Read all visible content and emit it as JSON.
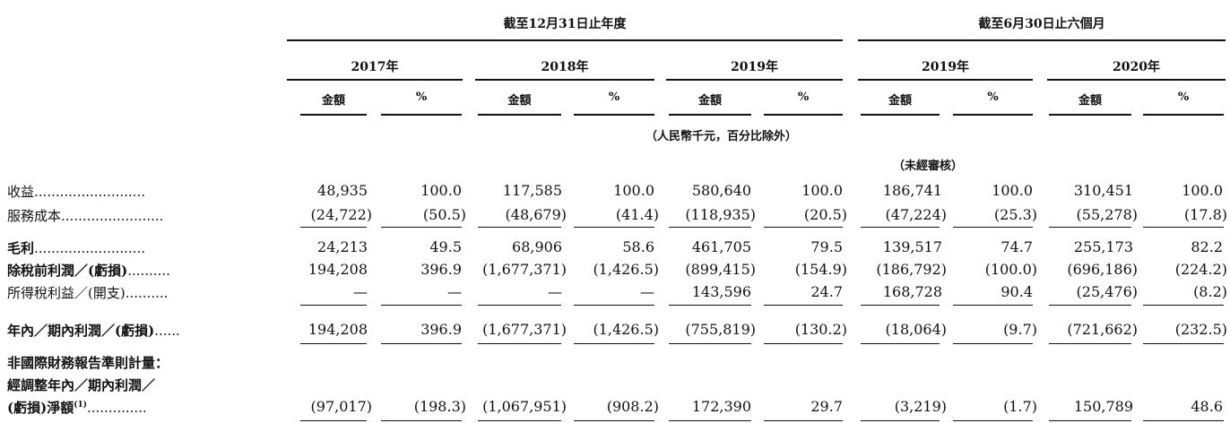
{
  "header": {
    "period_full_year": "截至12月31日止年度",
    "period_six_months": "截至6月30日止六個月",
    "years": [
      "2017年",
      "2018年",
      "2019年",
      "2019年",
      "2020年"
    ],
    "col_amount": "金額",
    "col_percent": "%",
    "currency_note": "（人民幣千元，百分比除外）",
    "unaudited_note": "（未經審核）"
  },
  "rows": [
    {
      "label": "收益",
      "dots": "..........................",
      "bold": false,
      "values": [
        "48,935",
        "100.0",
        "117,585",
        "100.0",
        "580,640",
        "100.0",
        "186,741",
        "100.0",
        "310,451",
        "100.0"
      ]
    },
    {
      "label": "服務成本",
      "dots": "........................",
      "bold": false,
      "values": [
        "(24,722)",
        "(50.5)",
        "(48,679)",
        "(41.4)",
        "(118,935)",
        "(20.5)",
        "(47,224)",
        "(25.3)",
        "(55,278)",
        "(17.8)"
      ]
    },
    {
      "label": "毛利",
      "dots": "..........................",
      "bold": true,
      "values": [
        "24,213",
        "49.5",
        "68,906",
        "58.6",
        "461,705",
        "79.5",
        "139,517",
        "74.7",
        "255,173",
        "82.2"
      ]
    },
    {
      "label": "除稅前利潤／(虧損)",
      "dots": "..........",
      "bold": true,
      "values": [
        "194,208",
        "396.9",
        "(1,677,371)",
        "(1,426.5)",
        "(899,415)",
        "(154.9)",
        "(186,792)",
        "(100.0)",
        "(696,186)",
        "(224.2)"
      ]
    },
    {
      "label": "所得稅利益／(開支)",
      "dots": "..........",
      "bold": false,
      "values": [
        "—",
        "—",
        "—",
        "—",
        "143,596",
        "24.7",
        "168,728",
        "90.4",
        "(25,476)",
        "(8.2)"
      ]
    },
    {
      "label": "年內／期內利潤／(虧損)",
      "dots": "......",
      "bold": true,
      "values": [
        "194,208",
        "396.9",
        "(1,677,371)",
        "(1,426.5)",
        "(755,819)",
        "(130.2)",
        "(18,064)",
        "(9.7)",
        "(721,662)",
        "(232.5)"
      ]
    }
  ],
  "non_ifrs": {
    "line1": "非國際財務報告準則計量：",
    "line2": "經調整年內／期內利潤／",
    "line3": "(虧損)淨額",
    "footnote": "(1)",
    "dots": "..............",
    "values": [
      "(97,017)",
      "(198.3)",
      "(1,067,951)",
      "(908.2)",
      "172,390",
      "29.7",
      "(3,219)",
      "(1.7)",
      "150,789",
      "48.6"
    ]
  }
}
